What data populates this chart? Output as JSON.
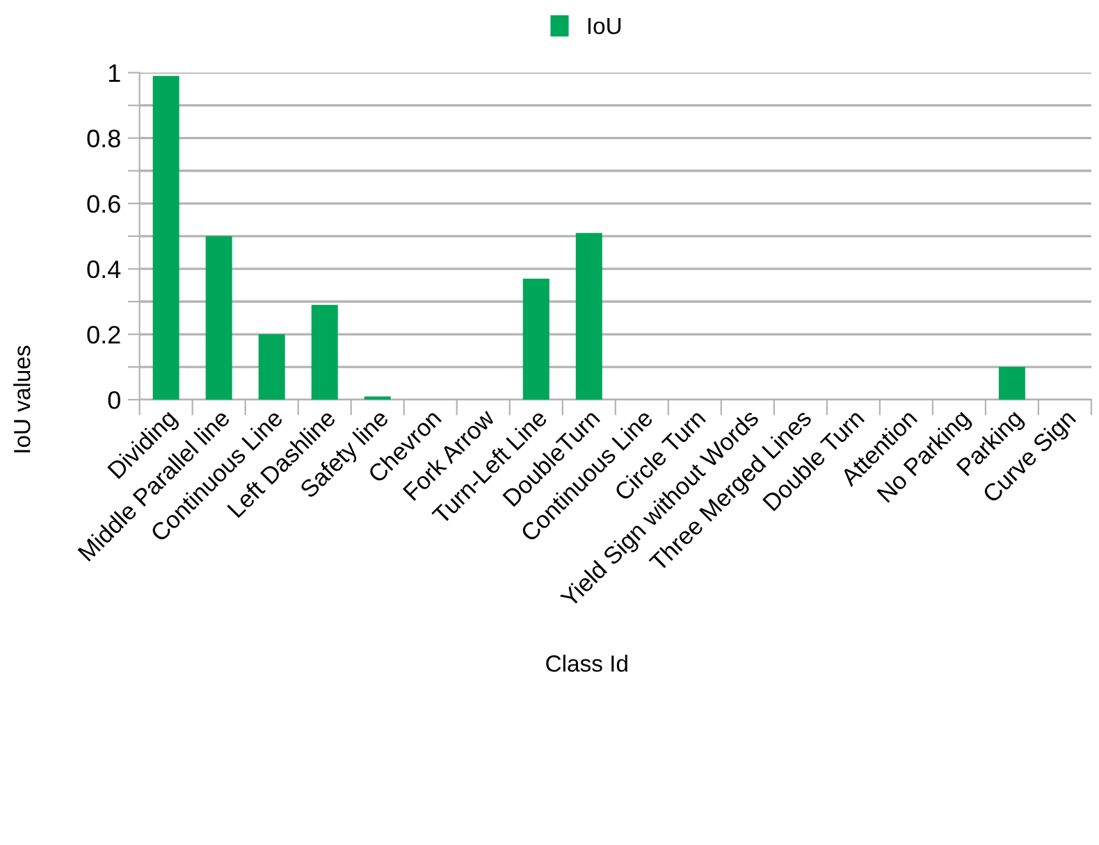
{
  "chart_data": {
    "type": "bar",
    "xlabel": "Class Id",
    "ylabel": "IoU values",
    "categories": [
      "Dividing",
      "Middle Parallel line",
      "Continuous Line",
      "Left Dashline",
      "Safety line",
      "Chevron",
      "Fork Arrow",
      "Turn-Left Line",
      "DoubleTurn",
      "Continuous Line",
      "Circle Turn",
      "Yield Sign without Words",
      "Three Merged Lines",
      "Double Turn",
      "Attention",
      "No Parking",
      "Parking",
      "Curve Sign"
    ],
    "series": [
      {
        "name": "IoU",
        "color": "#00a65a",
        "values": [
          0.99,
          0.5,
          0.2,
          0.29,
          0.01,
          0,
          0,
          0.37,
          0.51,
          0,
          0,
          0,
          0,
          0,
          0,
          0,
          0.1,
          0
        ]
      }
    ],
    "ylim": [
      0,
      1
    ],
    "yticks": [
      0,
      {
        "value": 0.1,
        "label": null
      },
      0.2,
      {
        "value": 0.3,
        "label": null
      },
      0.4,
      {
        "value": 0.5,
        "label": null
      },
      0.6,
      {
        "value": 0.7,
        "label": null
      },
      0.8,
      {
        "value": 0.9,
        "label": null
      },
      1
    ],
    "grid": "y",
    "legend": "top"
  }
}
